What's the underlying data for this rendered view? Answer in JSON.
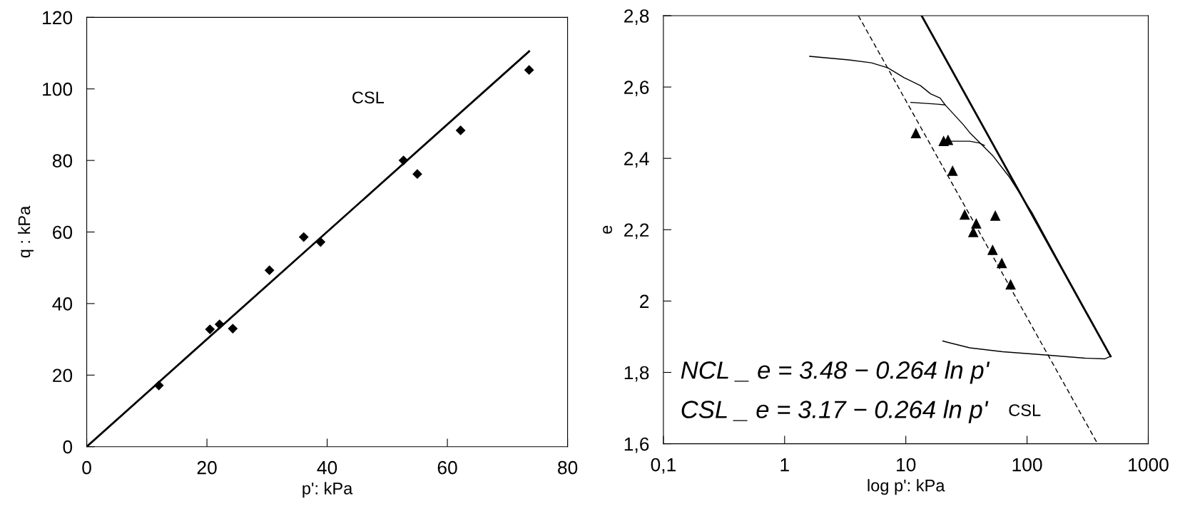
{
  "chart_data": [
    {
      "type": "scatter",
      "xlabel": "p': kPa",
      "ylabel": "q : kPa",
      "xlim": [
        0,
        80
      ],
      "ylim": [
        0,
        120
      ],
      "xticks": [
        0,
        20,
        40,
        60,
        80
      ],
      "yticks": [
        0,
        20,
        40,
        60,
        80,
        100,
        120
      ],
      "grid": false,
      "legend": false,
      "annotations": [
        "CSL"
      ],
      "series": [
        {
          "marker": "diamond",
          "color": "#000000",
          "x": [
            12.0,
            20.5,
            22.1,
            24.3,
            30.4,
            36.1,
            38.9,
            52.7,
            55.0,
            62.2,
            73.6
          ],
          "values": [
            17.1,
            32.8,
            34.2,
            33.0,
            49.3,
            58.6,
            57.2,
            80.0,
            76.2,
            88.4,
            105.3
          ]
        },
        {
          "type": "line",
          "marker": "none",
          "line_style": "solid",
          "color": "#000000",
          "x": [
            0,
            73.6
          ],
          "values": [
            0,
            110.5
          ]
        }
      ]
    },
    {
      "type": "scatter",
      "xlabel": "log p': kPa",
      "ylabel": "e",
      "log": "x",
      "xlim": [
        0.1,
        1000
      ],
      "ylim": [
        1.6,
        2.8
      ],
      "xticks": [
        {
          "value": 0.1,
          "label": "0,1"
        },
        1,
        10,
        100,
        1000
      ],
      "yticks": [
        {
          "value": 1.6,
          "label": "1,6"
        },
        {
          "value": 1.8,
          "label": "1,8"
        },
        2,
        {
          "value": 2.2,
          "label": "2,2"
        },
        {
          "value": 2.4,
          "label": "2,4"
        },
        {
          "value": 2.6,
          "label": "2,6"
        },
        {
          "value": 2.8,
          "label": "2,8"
        }
      ],
      "grid": false,
      "legend": false,
      "annotations": [
        "NCL _ e = 3.48 − 0.264 ln p'",
        "CSL _ e = 3.17 − 0.264 ln p'",
        "CSL"
      ],
      "series": [
        {
          "type": "line",
          "marker": "none",
          "line_style": "solid",
          "color": "#000000",
          "x": [
            13.5,
            489
          ],
          "values": [
            2.8,
            1.845
          ]
        },
        {
          "type": "line",
          "marker": "none",
          "line_style": "dashed",
          "color": "#000000",
          "x": [
            4.06,
            382
          ],
          "values": [
            2.8,
            1.6
          ]
        },
        {
          "type": "line",
          "marker": "none",
          "line_style": "solid",
          "color": "#000000",
          "x": [
            1.61,
            3.37,
            5.2,
            7.1,
            9.7,
            13.2,
            16.0,
            19.2,
            21.1,
            29.7,
            33.7,
            40.5,
            52,
            71,
            110,
            200,
            350,
            489
          ],
          "values": [
            2.686,
            2.676,
            2.668,
            2.654,
            2.626,
            2.604,
            2.581,
            2.569,
            2.55,
            2.495,
            2.472,
            2.445,
            2.408,
            2.349,
            2.248,
            2.085,
            1.935,
            1.845
          ]
        },
        {
          "type": "line",
          "marker": "none",
          "line_style": "solid",
          "color": "#000000",
          "x": [
            11.0,
            18.1,
            21.1
          ],
          "values": [
            2.557,
            2.552,
            2.55
          ]
        },
        {
          "type": "line",
          "marker": "none",
          "line_style": "solid",
          "color": "#000000",
          "x": [
            21.8,
            33.6,
            40.4,
            44.5
          ],
          "values": [
            2.448,
            2.448,
            2.443,
            2.436
          ]
        },
        {
          "type": "line",
          "marker": "none",
          "line_style": "solid",
          "color": "#000000",
          "x": [
            489,
            440,
            300,
            141,
            63,
            33.6,
            21.8,
            20.2
          ],
          "values": [
            1.845,
            1.838,
            1.84,
            1.849,
            1.858,
            1.869,
            1.885,
            1.888
          ]
        },
        {
          "marker": "triangle",
          "color": "#000000",
          "x": [
            12.1,
            20.5,
            22.3,
            24.3,
            30.6,
            38.1,
            36.0,
            54.7,
            52.0,
            61.9,
            73.2
          ],
          "values": [
            2.47,
            2.448,
            2.451,
            2.365,
            2.242,
            2.217,
            2.193,
            2.239,
            2.143,
            2.106,
            2.046
          ]
        }
      ]
    }
  ]
}
